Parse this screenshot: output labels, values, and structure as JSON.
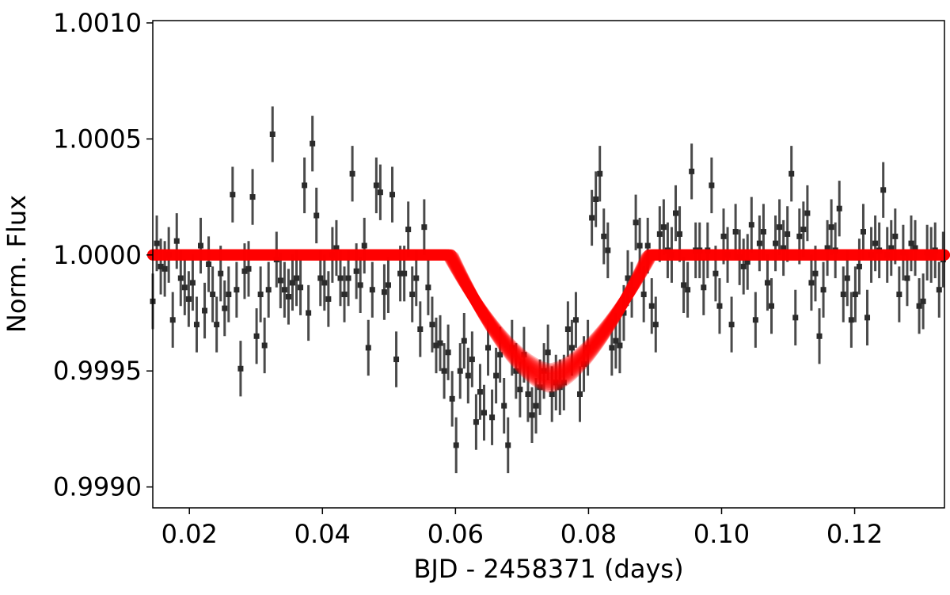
{
  "chart_data": {
    "type": "scatter",
    "title": "",
    "xlabel": "BJD - 2458371 (days)",
    "ylabel": "Norm. Flux",
    "xlim": [
      0.0145,
      0.1335
    ],
    "ylim": [
      0.99891,
      1.00101
    ],
    "grid": false,
    "legend": "none",
    "x_ticks": [
      0.02,
      0.04,
      0.06,
      0.08,
      0.1,
      0.12
    ],
    "x_tick_labels": [
      "0.02",
      "0.04",
      "0.06",
      "0.08",
      "0.10",
      "0.12"
    ],
    "y_ticks": [
      0.999,
      0.9995,
      1.0,
      1.0005,
      1.001
    ],
    "y_tick_labels": [
      "0.9990",
      "0.9995",
      "1.0000",
      "1.0005",
      "1.0010"
    ],
    "colors": {
      "data": "#2b2b2b",
      "errorbar": "#4a4a4a",
      "model": "#ff0000"
    },
    "series": [
      {
        "type": "errorbar-scatter",
        "y_error": 0.00012,
        "x": [
          0.0145,
          0.0151,
          0.0157,
          0.0163,
          0.0169,
          0.0175,
          0.0181,
          0.0187,
          0.0193,
          0.0199,
          0.0205,
          0.0211,
          0.0217,
          0.0223,
          0.0229,
          0.0235,
          0.0241,
          0.0247,
          0.0253,
          0.0259,
          0.0265,
          0.0271,
          0.0277,
          0.0283,
          0.0289,
          0.0295,
          0.0301,
          0.0307,
          0.0313,
          0.0319,
          0.0325,
          0.0331,
          0.0337,
          0.0343,
          0.0349,
          0.0355,
          0.0361,
          0.0367,
          0.0373,
          0.0379,
          0.0385,
          0.0391,
          0.0397,
          0.0403,
          0.0409,
          0.0415,
          0.0421,
          0.0427,
          0.0433,
          0.0439,
          0.0445,
          0.0451,
          0.0457,
          0.0463,
          0.0469,
          0.0475,
          0.0481,
          0.0487,
          0.0493,
          0.0499,
          0.0505,
          0.0511,
          0.0517,
          0.0523,
          0.0529,
          0.0535,
          0.0541,
          0.0547,
          0.0553,
          0.0559,
          0.0565,
          0.0571,
          0.0577,
          0.0583,
          0.0589,
          0.0595,
          0.0601,
          0.0607,
          0.0613,
          0.0619,
          0.0625,
          0.0631,
          0.0637,
          0.0643,
          0.0649,
          0.0655,
          0.0661,
          0.0667,
          0.0673,
          0.0679,
          0.0685,
          0.0691,
          0.0697,
          0.0703,
          0.0709,
          0.0715,
          0.0721,
          0.0727,
          0.0733,
          0.0739,
          0.0745,
          0.0751,
          0.0757,
          0.0763,
          0.0769,
          0.0775,
          0.0781,
          0.0787,
          0.0793,
          0.0799,
          0.0805,
          0.0811,
          0.0817,
          0.0823,
          0.0829,
          0.0835,
          0.0841,
          0.0847,
          0.0853,
          0.0859,
          0.0865,
          0.0871,
          0.0877,
          0.0883,
          0.0889,
          0.0895,
          0.0901,
          0.0907,
          0.0913,
          0.0919,
          0.0925,
          0.0931,
          0.0937,
          0.0943,
          0.0949,
          0.0955,
          0.0961,
          0.0967,
          0.0973,
          0.0979,
          0.0985,
          0.0991,
          0.0997,
          0.1003,
          0.1009,
          0.1015,
          0.1021,
          0.1027,
          0.1033,
          0.1039,
          0.1045,
          0.1051,
          0.1057,
          0.1063,
          0.1069,
          0.1075,
          0.1081,
          0.1087,
          0.1093,
          0.1099,
          0.1105,
          0.1111,
          0.1117,
          0.1123,
          0.1129,
          0.1135,
          0.1141,
          0.1147,
          0.1153,
          0.1159,
          0.1165,
          0.1171,
          0.1177,
          0.1183,
          0.1189,
          0.1195,
          0.1201,
          0.1207,
          0.1213,
          0.1219,
          0.1225,
          0.1231,
          0.1237,
          0.1243,
          0.1249,
          0.1255,
          0.1261,
          0.1267,
          0.1273,
          0.1279,
          0.1285,
          0.1291,
          0.1297,
          0.1303,
          0.1309,
          0.1315,
          0.1321,
          0.1327,
          0.1333
        ],
        "y": [
          0.9998,
          1.00005,
          0.99995,
          0.99994,
          1.0,
          0.99972,
          1.00006,
          0.9999,
          0.99986,
          0.99981,
          0.99988,
          0.9997,
          1.00004,
          0.99976,
          0.99996,
          0.99983,
          0.9997,
          0.99992,
          0.99977,
          0.99983,
          1.00026,
          0.99985,
          0.99951,
          0.99993,
          0.99994,
          1.00025,
          0.99965,
          0.99983,
          0.99961,
          0.99985,
          1.00052,
          0.99998,
          0.99989,
          0.99985,
          0.99982,
          0.99988,
          0.9999,
          0.99986,
          1.0003,
          0.99975,
          1.00048,
          1.00017,
          0.9999,
          0.99988,
          0.99981,
          1.0,
          1.00003,
          0.9999,
          0.99983,
          0.9999,
          1.00035,
          0.99993,
          0.99987,
          1.00004,
          0.9996,
          0.99985,
          1.0003,
          1.00027,
          0.99984,
          0.99987,
          1.00026,
          0.99955,
          0.99992,
          0.99992,
          1.00011,
          0.99983,
          0.9999,
          0.99968,
          1.00012,
          0.99986,
          0.9997,
          0.99961,
          0.99962,
          0.9995,
          0.99958,
          0.99938,
          0.99918,
          0.9995,
          0.99963,
          0.99948,
          0.99955,
          0.99928,
          0.99941,
          0.99932,
          0.9996,
          0.9993,
          0.99948,
          0.99957,
          0.99935,
          0.99918,
          0.9996,
          0.9995,
          0.99942,
          0.99957,
          0.9994,
          0.99931,
          0.99935,
          0.99943,
          0.9995,
          0.99958,
          0.9994,
          0.99945,
          0.99943,
          0.99945,
          0.99968,
          0.9996,
          0.99972,
          0.9994,
          0.99953,
          0.9996,
          1.00016,
          1.00024,
          1.00035,
          1.00008,
          1.00002,
          0.9996,
          0.99963,
          0.99961,
          0.99975,
          0.9999,
          0.99985,
          1.00014,
          1.00004,
          0.99983,
          1.00004,
          0.99978,
          0.9997,
          1.00009,
          1.00012,
          1.00002,
          1.0,
          1.00018,
          1.00009,
          0.99987,
          0.99985,
          1.00036,
          1.00002,
          1.00002,
          0.99986,
          1.00002,
          1.0003,
          0.99992,
          0.99978,
          1.00008,
          1.0,
          0.9997,
          1.0001,
          0.99999,
          0.99995,
          0.99997,
          1.00013,
          0.99972,
          1.00005,
          1.0001,
          0.99988,
          0.99978,
          1.00005,
          1.00012,
          1.00003,
          1.00009,
          1.00035,
          0.99973,
          1.00008,
          1.00011,
          1.00018,
          0.99988,
          0.99992,
          0.99965,
          0.99985,
          1.00003,
          1.00012,
          1.00002,
          1.0002,
          0.99983,
          0.9999,
          0.99972,
          0.99983,
          0.99995,
          1.0001,
          0.99973,
          1.0,
          1.00005,
          1.00002,
          1.00028,
          1.0,
          1.00003,
          1.00008,
          0.99983,
          1.00001,
          0.9999,
          1.00005,
          1.00003,
          0.99978,
          0.9998,
          1.00001,
          1.0,
          1.00002,
          0.99985,
          0.99998
        ]
      },
      {
        "type": "transit-model",
        "baseline": 1.0,
        "depth": 0.00053,
        "mid_time": 0.0742,
        "ingress_start": 0.0592,
        "egress_end": 0.0892,
        "n_samples": 14,
        "sample_spread": 4e-05
      }
    ]
  }
}
